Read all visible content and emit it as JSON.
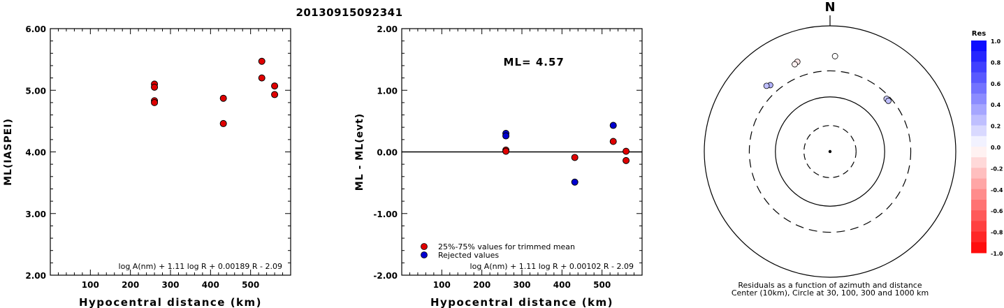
{
  "title": "20130915092341",
  "chart_data": [
    {
      "type": "scatter",
      "xlabel": "Hypocentral distance (km)",
      "ylabel": "ML(IASPEI)",
      "xlim": [
        0,
        600
      ],
      "ylim": [
        2.0,
        6.0
      ],
      "x_ticks": [
        "100",
        "200",
        "300",
        "400",
        "500"
      ],
      "y_ticks": [
        "2.00",
        "3.00",
        "4.00",
        "5.00",
        "6.00"
      ],
      "formula": "log A(nm) + 1.11 log R + 0.00189 R - 2.09",
      "series": [
        {
          "color": "#e00000",
          "points": [
            [
              260,
              5.1
            ],
            [
              260,
              5.05
            ],
            [
              260,
              4.83
            ],
            [
              260,
              4.8
            ],
            [
              432,
              4.87
            ],
            [
              432,
              4.46
            ],
            [
              528,
              5.47
            ],
            [
              528,
              5.2
            ],
            [
              560,
              5.07
            ],
            [
              560,
              4.93
            ]
          ]
        }
      ]
    },
    {
      "type": "scatter",
      "xlabel": "Hypocentral distance (km)",
      "ylabel": "ML - ML(evt)",
      "xlim": [
        0,
        600
      ],
      "ylim": [
        -2.0,
        2.0
      ],
      "x_ticks": [
        "100",
        "200",
        "300",
        "400",
        "500"
      ],
      "y_ticks": [
        "-2.00",
        "-1.00",
        "0.00",
        "1.00",
        "2.00"
      ],
      "annotation": "ML= 4.57",
      "formula": "log A(nm) + 1.11 log R + 0.00102 R - 2.09",
      "legend": {
        "placement": "bottom-left",
        "entries": [
          {
            "label": "25%-75% values for trimmed mean",
            "color": "#e00000"
          },
          {
            "label": "Rejected values",
            "color": "#0000d0"
          }
        ]
      },
      "series": [
        {
          "name": "25%-75% values for trimmed mean",
          "color": "#e00000",
          "points": [
            [
              260,
              0.03
            ],
            [
              260,
              0.01
            ],
            [
              432,
              -0.09
            ],
            [
              528,
              0.17
            ],
            [
              560,
              0.01
            ],
            [
              560,
              -0.14
            ]
          ]
        },
        {
          "name": "Rejected values",
          "color": "#0000d0",
          "points": [
            [
              260,
              0.3
            ],
            [
              260,
              0.26
            ],
            [
              432,
              -0.49
            ],
            [
              528,
              0.43
            ]
          ]
        }
      ]
    },
    {
      "type": "polar-scatter",
      "north_label": "N",
      "caption_lines": [
        "Residuals as a function of azimuth and distance",
        "Center (10km), Circle at 30, 100, 300 and 1000 km"
      ],
      "rings_km": [
        30,
        100,
        300,
        1000
      ],
      "points": [
        {
          "azimuth_deg": 3,
          "distance_km": 560,
          "residual": 0.0
        },
        {
          "azimuth_deg": 340,
          "distance_km": 560,
          "residual": -0.1
        },
        {
          "azimuth_deg": 338,
          "distance_km": 528,
          "residual": -0.05
        },
        {
          "azimuth_deg": 318,
          "distance_km": 432,
          "residual": 0.3
        },
        {
          "azimuth_deg": 316,
          "distance_km": 470,
          "residual": 0.25
        },
        {
          "azimuth_deg": 47,
          "distance_km": 260,
          "residual": 0.2
        },
        {
          "azimuth_deg": 49,
          "distance_km": 260,
          "residual": 0.25
        }
      ],
      "colorbar": {
        "title": "Res",
        "ticks": [
          "1.0",
          "0.8",
          "0.6",
          "0.4",
          "0.2",
          "0.0",
          "-0.2",
          "-0.4",
          "-0.6",
          "-0.8",
          "-1.0"
        ]
      }
    }
  ]
}
